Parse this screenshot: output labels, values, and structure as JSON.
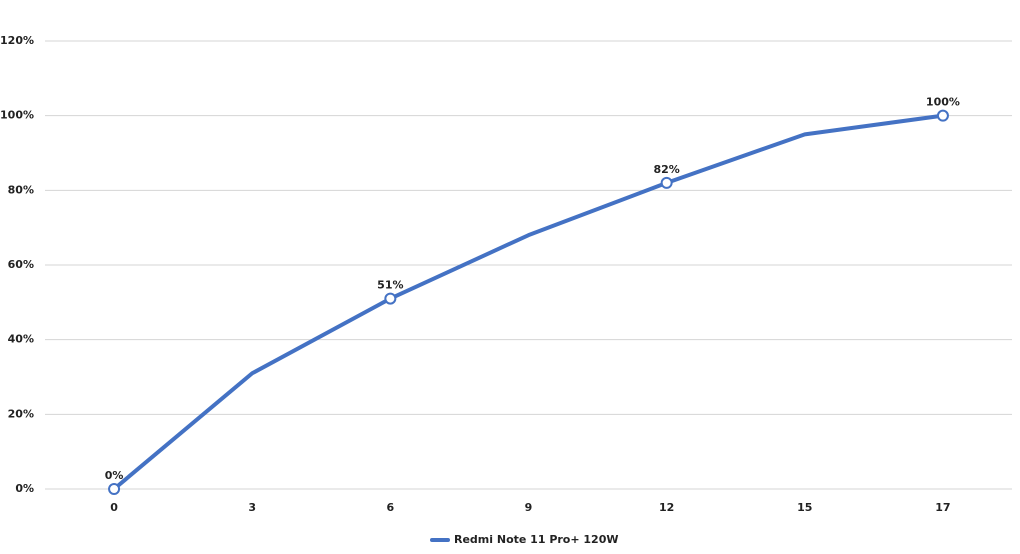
{
  "chart_data": {
    "type": "line",
    "categories": [
      "0",
      "3",
      "6",
      "9",
      "12",
      "15",
      "17"
    ],
    "series": [
      {
        "name": "Redmi Note 11 Pro+ 120W",
        "color": "#4472c4",
        "values": [
          0,
          31,
          51,
          68,
          82,
          95,
          100
        ],
        "value_labels": [
          "0%",
          null,
          "51%",
          null,
          "82%",
          null,
          "100%"
        ]
      }
    ],
    "ylim": [
      0,
      120
    ],
    "yticks": [
      {
        "value": 0,
        "label": "0%"
      },
      {
        "value": 20,
        "label": "20%"
      },
      {
        "value": 40,
        "label": "40%"
      },
      {
        "value": 60,
        "label": "60%"
      },
      {
        "value": 80,
        "label": "80%"
      },
      {
        "value": 100,
        "label": "100%"
      },
      {
        "value": 120,
        "label": "120%"
      }
    ],
    "grid": true
  }
}
